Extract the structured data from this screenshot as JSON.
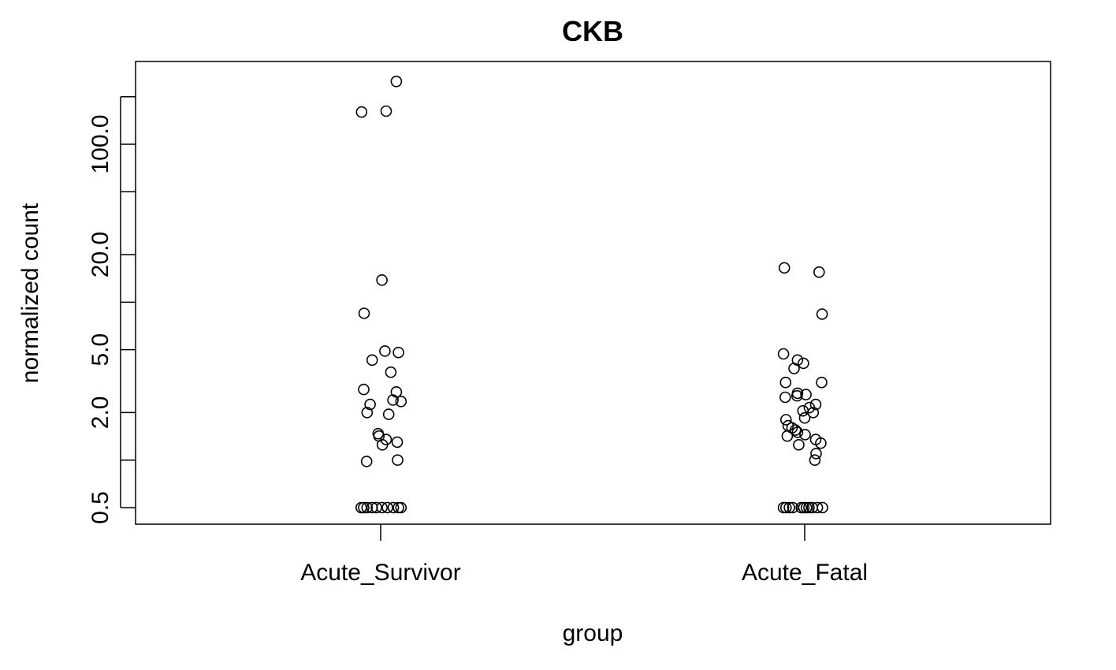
{
  "chart_data": {
    "type": "scatter",
    "title": "CKB",
    "xlabel": "group",
    "ylabel": "normalized count",
    "y_scale": "log",
    "ylim": [
      0.41,
      340
    ],
    "categories": [
      "Acute_Survivor",
      "Acute_Fatal"
    ],
    "y_ticks": [
      {
        "value": 0.5,
        "label": "0.5"
      },
      {
        "value": 1,
        "label": ""
      },
      {
        "value": 2,
        "label": "2.0"
      },
      {
        "value": 5,
        "label": "5.0"
      },
      {
        "value": 10,
        "label": ""
      },
      {
        "value": 20,
        "label": "20.0"
      },
      {
        "value": 50,
        "label": ""
      },
      {
        "value": 100,
        "label": "100.0"
      },
      {
        "value": 200,
        "label": ""
      }
    ],
    "points": [
      {
        "group": "Acute_Survivor",
        "jitter": 0.037,
        "y": 250
      },
      {
        "group": "Acute_Survivor",
        "jitter": -0.045,
        "y": 160
      },
      {
        "group": "Acute_Survivor",
        "jitter": 0.013,
        "y": 162
      },
      {
        "group": "Acute_Survivor",
        "jitter": 0.003,
        "y": 13.8
      },
      {
        "group": "Acute_Survivor",
        "jitter": -0.039,
        "y": 8.5
      },
      {
        "group": "Acute_Survivor",
        "jitter": 0.01,
        "y": 4.9
      },
      {
        "group": "Acute_Survivor",
        "jitter": 0.042,
        "y": 4.8
      },
      {
        "group": "Acute_Survivor",
        "jitter": -0.02,
        "y": 4.3
      },
      {
        "group": "Acute_Survivor",
        "jitter": 0.024,
        "y": 3.6
      },
      {
        "group": "Acute_Survivor",
        "jitter": -0.04,
        "y": 2.8
      },
      {
        "group": "Acute_Survivor",
        "jitter": 0.037,
        "y": 2.7
      },
      {
        "group": "Acute_Survivor",
        "jitter": 0.029,
        "y": 2.4
      },
      {
        "group": "Acute_Survivor",
        "jitter": 0.048,
        "y": 2.35
      },
      {
        "group": "Acute_Survivor",
        "jitter": -0.025,
        "y": 2.25
      },
      {
        "group": "Acute_Survivor",
        "jitter": -0.032,
        "y": 2.0
      },
      {
        "group": "Acute_Survivor",
        "jitter": 0.019,
        "y": 1.95
      },
      {
        "group": "Acute_Survivor",
        "jitter": -0.006,
        "y": 1.47
      },
      {
        "group": "Acute_Survivor",
        "jitter": -0.004,
        "y": 1.42
      },
      {
        "group": "Acute_Survivor",
        "jitter": 0.013,
        "y": 1.35
      },
      {
        "group": "Acute_Survivor",
        "jitter": 0.039,
        "y": 1.3
      },
      {
        "group": "Acute_Survivor",
        "jitter": 0.004,
        "y": 1.25
      },
      {
        "group": "Acute_Survivor",
        "jitter": 0.04,
        "y": 1.0
      },
      {
        "group": "Acute_Survivor",
        "jitter": -0.033,
        "y": 0.98
      },
      {
        "group": "Acute_Survivor",
        "jitter": -0.046,
        "y": 0.5
      },
      {
        "group": "Acute_Survivor",
        "jitter": -0.04,
        "y": 0.5
      },
      {
        "group": "Acute_Survivor",
        "jitter": -0.032,
        "y": 0.5
      },
      {
        "group": "Acute_Survivor",
        "jitter": -0.02,
        "y": 0.5
      },
      {
        "group": "Acute_Survivor",
        "jitter": -0.01,
        "y": 0.5
      },
      {
        "group": "Acute_Survivor",
        "jitter": 0.003,
        "y": 0.5
      },
      {
        "group": "Acute_Survivor",
        "jitter": 0.016,
        "y": 0.5
      },
      {
        "group": "Acute_Survivor",
        "jitter": 0.03,
        "y": 0.5
      },
      {
        "group": "Acute_Survivor",
        "jitter": 0.042,
        "y": 0.5
      },
      {
        "group": "Acute_Survivor",
        "jitter": 0.048,
        "y": 0.5
      },
      {
        "group": "Acute_Fatal",
        "jitter": -0.048,
        "y": 16.5
      },
      {
        "group": "Acute_Fatal",
        "jitter": 0.034,
        "y": 15.5
      },
      {
        "group": "Acute_Fatal",
        "jitter": 0.041,
        "y": 8.4
      },
      {
        "group": "Acute_Fatal",
        "jitter": -0.05,
        "y": 4.7
      },
      {
        "group": "Acute_Fatal",
        "jitter": -0.017,
        "y": 4.3
      },
      {
        "group": "Acute_Fatal",
        "jitter": -0.003,
        "y": 4.1
      },
      {
        "group": "Acute_Fatal",
        "jitter": -0.025,
        "y": 3.8
      },
      {
        "group": "Acute_Fatal",
        "jitter": -0.045,
        "y": 3.1
      },
      {
        "group": "Acute_Fatal",
        "jitter": 0.04,
        "y": 3.1
      },
      {
        "group": "Acute_Fatal",
        "jitter": -0.017,
        "y": 2.65
      },
      {
        "group": "Acute_Fatal",
        "jitter": 0.003,
        "y": 2.6
      },
      {
        "group": "Acute_Fatal",
        "jitter": -0.018,
        "y": 2.55
      },
      {
        "group": "Acute_Fatal",
        "jitter": -0.046,
        "y": 2.5
      },
      {
        "group": "Acute_Fatal",
        "jitter": 0.026,
        "y": 2.25
      },
      {
        "group": "Acute_Fatal",
        "jitter": 0.011,
        "y": 2.15
      },
      {
        "group": "Acute_Fatal",
        "jitter": -0.004,
        "y": 2.05
      },
      {
        "group": "Acute_Fatal",
        "jitter": 0.02,
        "y": 2.0
      },
      {
        "group": "Acute_Fatal",
        "jitter": 0.0,
        "y": 1.85
      },
      {
        "group": "Acute_Fatal",
        "jitter": -0.044,
        "y": 1.8
      },
      {
        "group": "Acute_Fatal",
        "jitter": -0.039,
        "y": 1.65
      },
      {
        "group": "Acute_Fatal",
        "jitter": -0.03,
        "y": 1.6
      },
      {
        "group": "Acute_Fatal",
        "jitter": -0.022,
        "y": 1.55
      },
      {
        "group": "Acute_Fatal",
        "jitter": -0.017,
        "y": 1.5
      },
      {
        "group": "Acute_Fatal",
        "jitter": 0.001,
        "y": 1.45
      },
      {
        "group": "Acute_Fatal",
        "jitter": -0.041,
        "y": 1.42
      },
      {
        "group": "Acute_Fatal",
        "jitter": 0.026,
        "y": 1.35
      },
      {
        "group": "Acute_Fatal",
        "jitter": 0.038,
        "y": 1.28
      },
      {
        "group": "Acute_Fatal",
        "jitter": -0.014,
        "y": 1.25
      },
      {
        "group": "Acute_Fatal",
        "jitter": 0.027,
        "y": 1.1
      },
      {
        "group": "Acute_Fatal",
        "jitter": 0.024,
        "y": 1.0
      },
      {
        "group": "Acute_Fatal",
        "jitter": -0.05,
        "y": 0.5
      },
      {
        "group": "Acute_Fatal",
        "jitter": -0.044,
        "y": 0.5
      },
      {
        "group": "Acute_Fatal",
        "jitter": -0.036,
        "y": 0.5
      },
      {
        "group": "Acute_Fatal",
        "jitter": -0.028,
        "y": 0.5
      },
      {
        "group": "Acute_Fatal",
        "jitter": -0.008,
        "y": 0.5
      },
      {
        "group": "Acute_Fatal",
        "jitter": -0.002,
        "y": 0.5
      },
      {
        "group": "Acute_Fatal",
        "jitter": 0.004,
        "y": 0.5
      },
      {
        "group": "Acute_Fatal",
        "jitter": 0.01,
        "y": 0.5
      },
      {
        "group": "Acute_Fatal",
        "jitter": 0.018,
        "y": 0.5
      },
      {
        "group": "Acute_Fatal",
        "jitter": 0.03,
        "y": 0.5
      },
      {
        "group": "Acute_Fatal",
        "jitter": 0.042,
        "y": 0.5
      }
    ]
  }
}
